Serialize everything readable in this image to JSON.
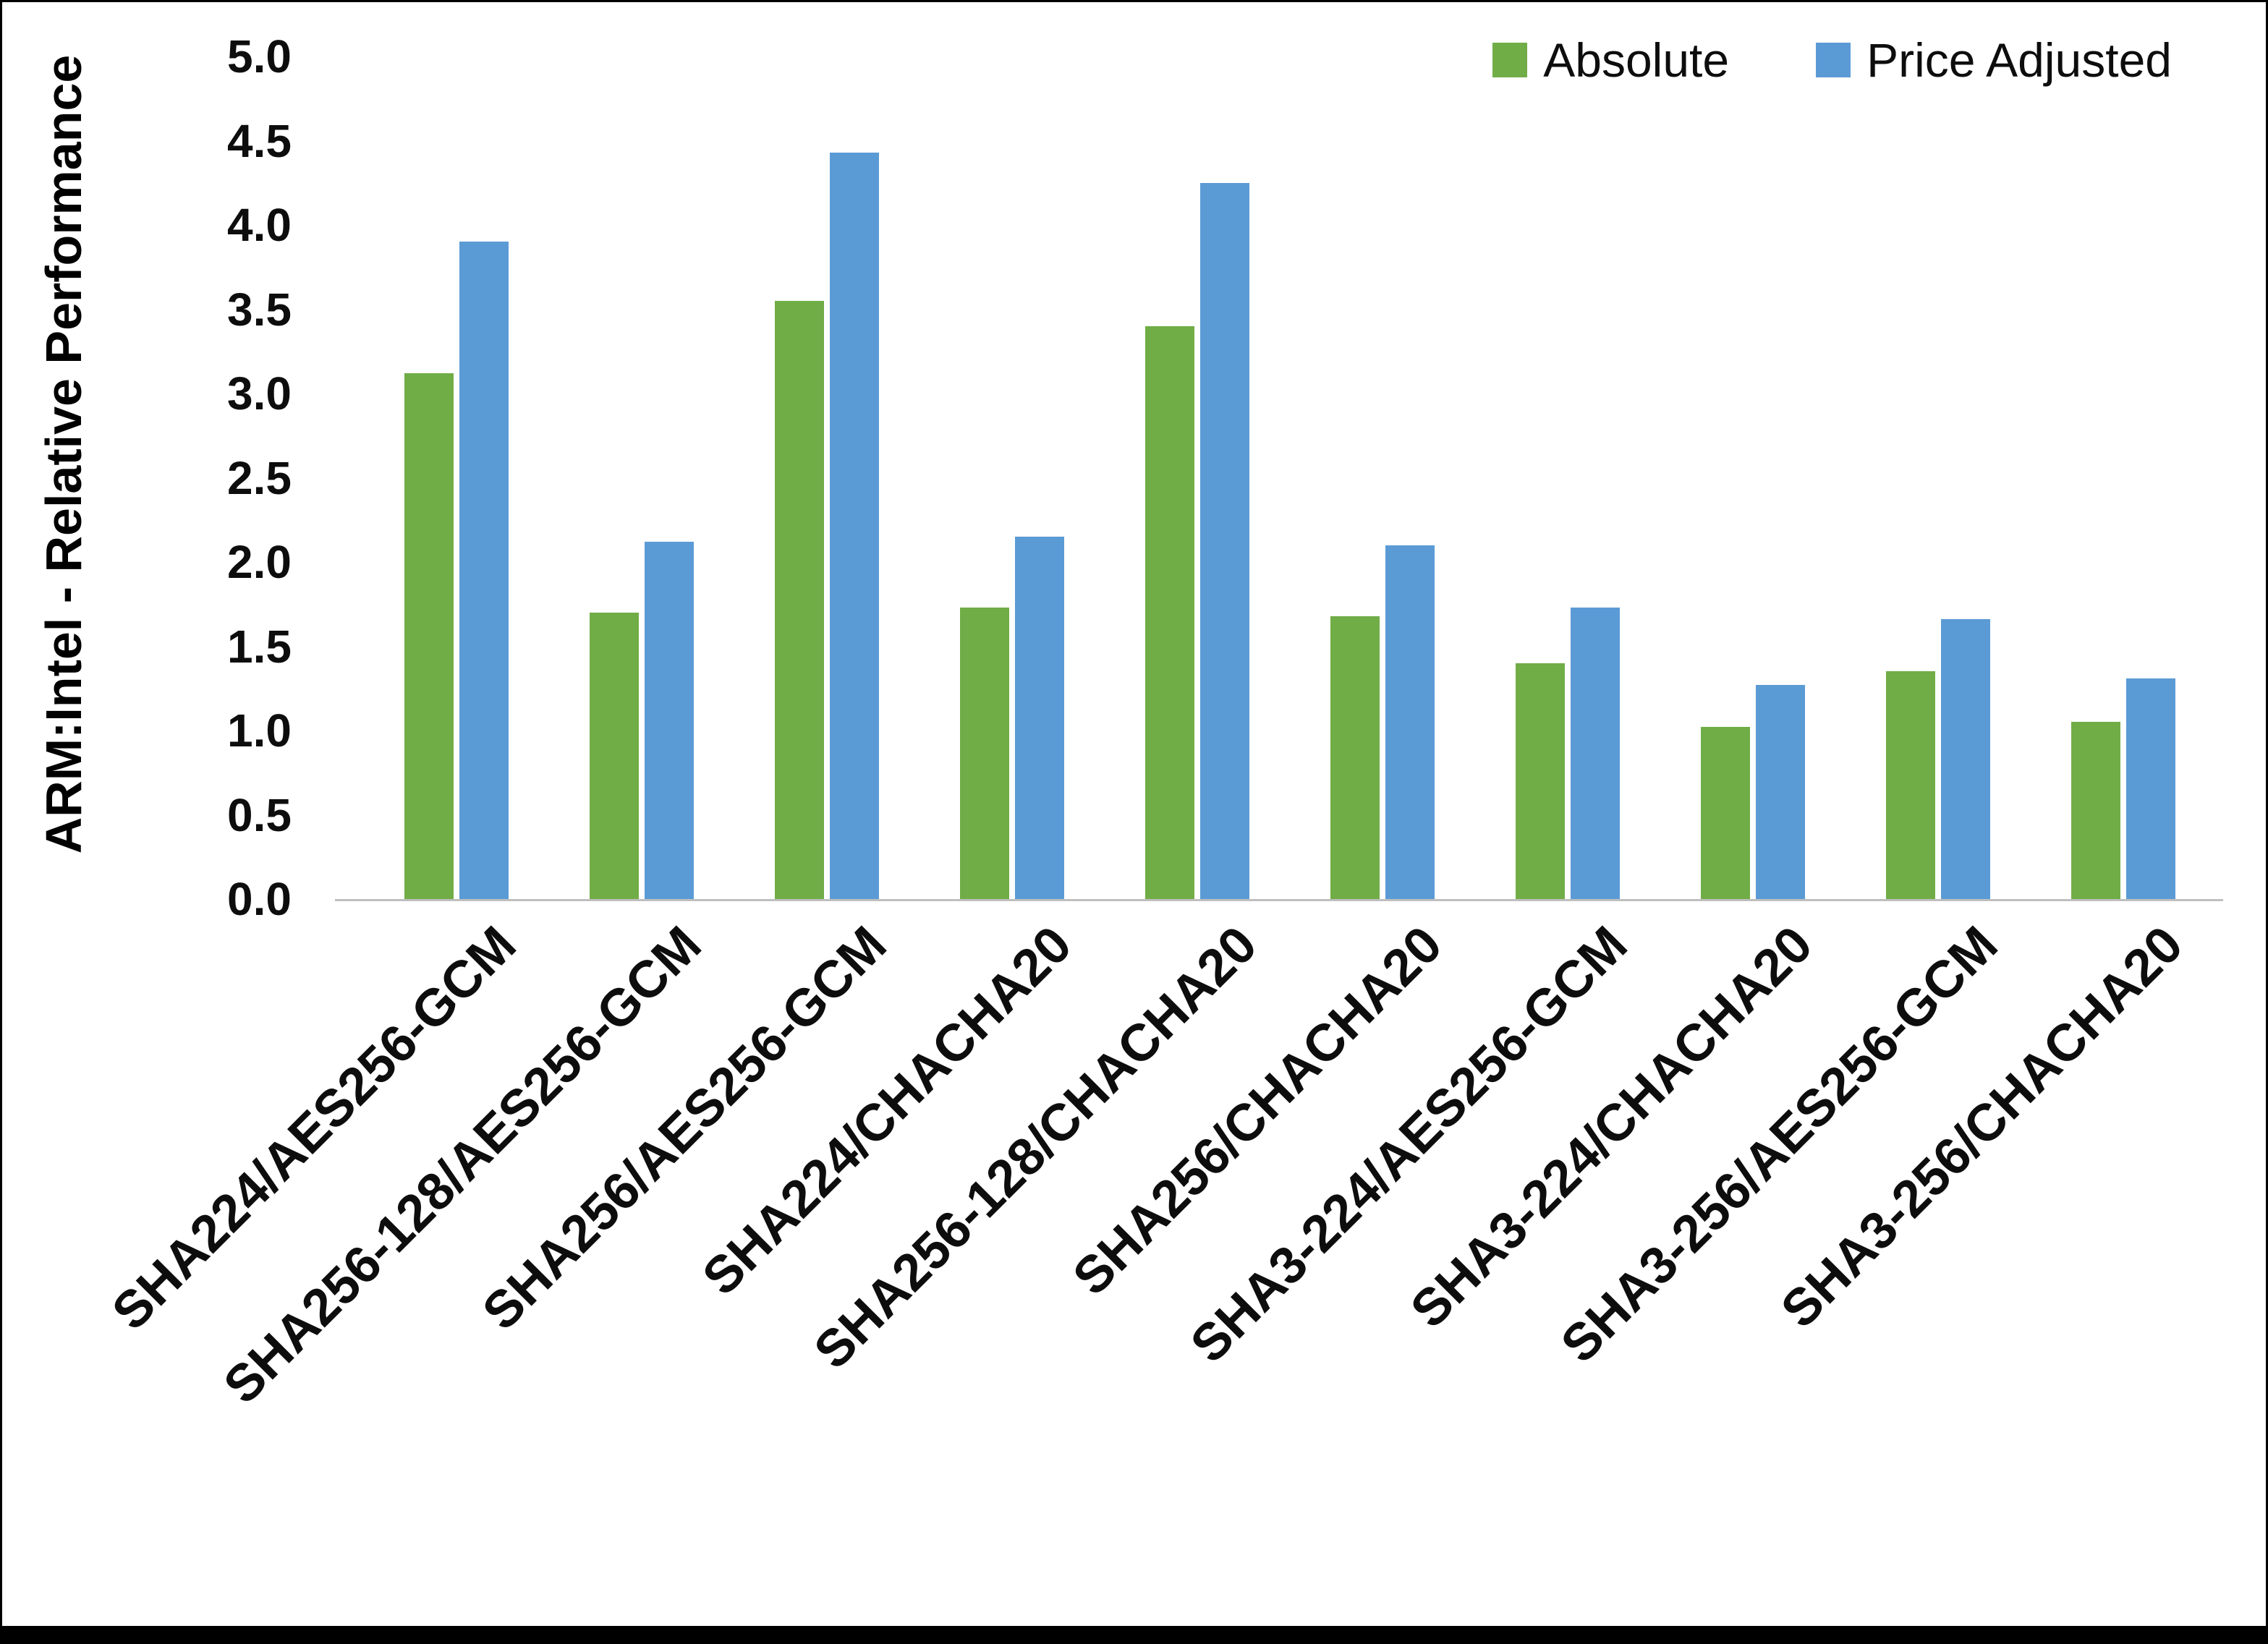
{
  "chart_data": {
    "type": "bar",
    "title": "",
    "xlabel": "",
    "ylabel": "ARM:Intel - Relative Performance",
    "ylim": [
      0,
      5.0
    ],
    "ytick_step": 0.5,
    "ytick_labels": [
      "0.0",
      "0.5",
      "1.0",
      "1.5",
      "2.0",
      "2.5",
      "3.0",
      "3.5",
      "4.0",
      "4.5",
      "5.0"
    ],
    "grid": false,
    "legend_position": "top-right",
    "categories": [
      "SHA224/AES256-GCM",
      "SHA256-128/AES256-GCM",
      "SHA256/AES256-GCM",
      "SHA224/CHACHA20",
      "SHA256-128/CHACHA20",
      "SHA256/CHACHA20",
      "SHA3-224/AES256-GCM",
      "SHA3-224/CHACHA20",
      "SHA3-256/AES256-GCM",
      "SHA3-256/CHACHA20"
    ],
    "series": [
      {
        "name": "Absolute",
        "color": "#70AD47",
        "values": [
          3.12,
          1.7,
          3.55,
          1.73,
          3.4,
          1.68,
          1.4,
          1.02,
          1.35,
          1.05
        ]
      },
      {
        "name": "Price Adjusted",
        "color": "#5B9BD5",
        "values": [
          3.9,
          2.12,
          4.43,
          2.15,
          4.25,
          2.1,
          1.73,
          1.27,
          1.66,
          1.31
        ]
      }
    ]
  },
  "frame": {
    "border_color": "#000000",
    "axis_line_color": "#bfbfbf"
  }
}
